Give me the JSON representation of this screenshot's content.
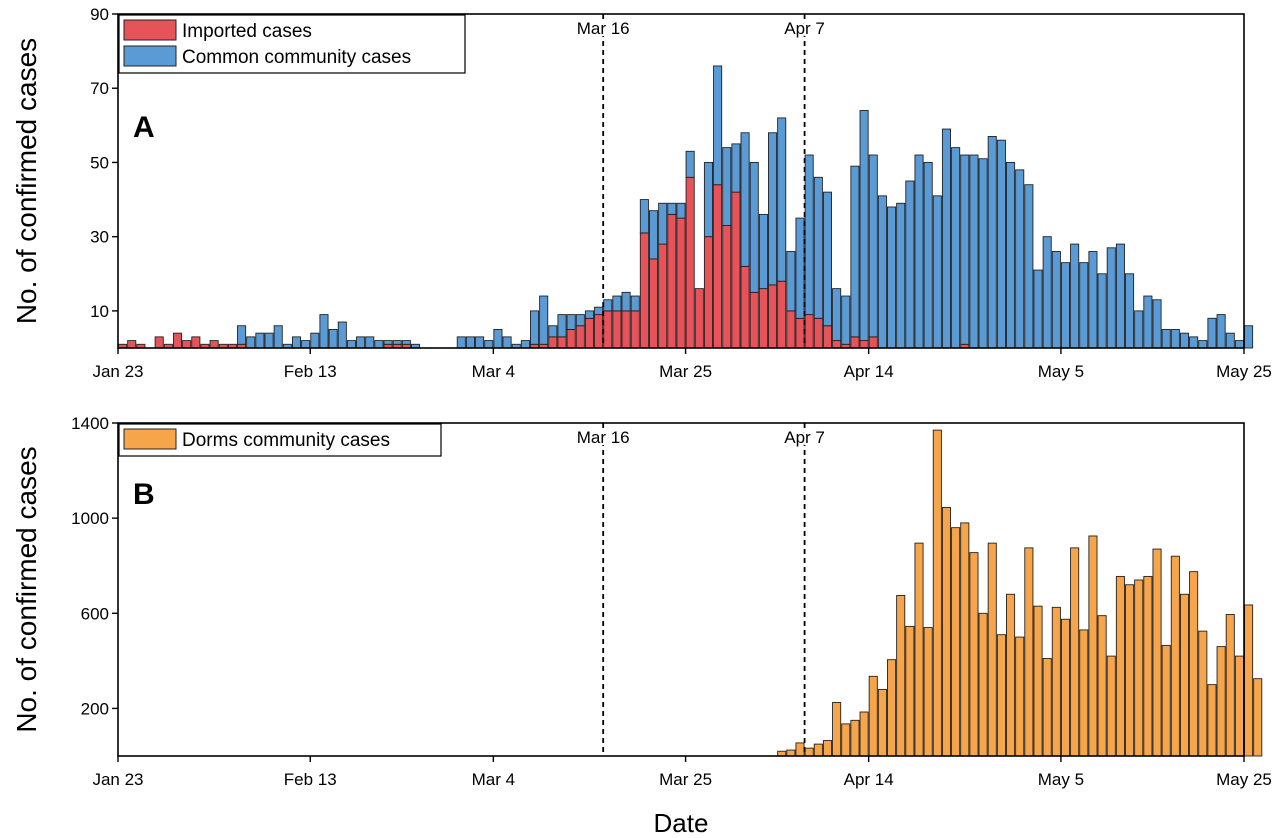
{
  "chart_data": [
    {
      "type": "bar",
      "panel_label": "A",
      "stacked": true,
      "ylabel": "No. of confirmed cases",
      "xlabel": "",
      "ylim": [
        0,
        90
      ],
      "yticks": [
        10,
        30,
        50,
        70,
        90
      ],
      "xticks": [
        "Jan 23",
        "Feb 13",
        "Mar 4",
        "Mar 25",
        "Apr 14",
        "May 5",
        "May 25"
      ],
      "xtick_days": [
        0,
        21,
        41,
        62,
        82,
        103,
        123
      ],
      "x_start": "Jan 23",
      "x_end": "May 25",
      "vlines": [
        {
          "day": 53,
          "label": "Mar 16"
        },
        {
          "day": 75,
          "label": "Apr 7"
        }
      ],
      "legend_position": "top-left",
      "series": [
        {
          "name": "Imported cases",
          "color": "#e8535a",
          "values": [
            1,
            2,
            1,
            0,
            3,
            1,
            4,
            2,
            3,
            1,
            2,
            1,
            1,
            1,
            0,
            0,
            0,
            0,
            0,
            0,
            0,
            0,
            0,
            0,
            0,
            0,
            0,
            0,
            0,
            1,
            1,
            1,
            0,
            0,
            0,
            0,
            0,
            0,
            0,
            0,
            0,
            0,
            0,
            0,
            0,
            1,
            1,
            3,
            3,
            5,
            6,
            8,
            9,
            10,
            10,
            10,
            10,
            31,
            24,
            28,
            36,
            35,
            46,
            16,
            30,
            44,
            33,
            42,
            22,
            15,
            16,
            17,
            18,
            10,
            8,
            9,
            8,
            6,
            2,
            1,
            3,
            2,
            3,
            0,
            0,
            0,
            0,
            0,
            0,
            0,
            0,
            0,
            1,
            0,
            0,
            0,
            0,
            0,
            0,
            0,
            0,
            0,
            0,
            0,
            0,
            0,
            0,
            0,
            0,
            0,
            0,
            0,
            0,
            0,
            0,
            0,
            0,
            0,
            0,
            0,
            0,
            0,
            0,
            0
          ]
        },
        {
          "name": "Common community cases",
          "color": "#5b9bd5",
          "values": [
            0,
            0,
            0,
            0,
            0,
            0,
            0,
            0,
            0,
            0,
            0,
            0,
            0,
            5,
            3,
            4,
            4,
            6,
            1,
            3,
            2,
            4,
            9,
            5,
            7,
            2,
            3,
            3,
            2,
            1,
            1,
            1,
            1,
            0,
            0,
            0,
            0,
            3,
            3,
            3,
            2,
            5,
            3,
            1,
            2,
            9,
            13,
            3,
            6,
            4,
            3,
            2,
            2,
            3,
            4,
            5,
            4,
            9,
            13,
            11,
            3,
            4,
            7,
            0,
            20,
            32,
            21,
            13,
            36,
            35,
            20,
            41,
            44,
            16,
            27,
            43,
            38,
            36,
            14,
            13,
            46,
            62,
            49,
            41,
            38,
            39,
            45,
            52,
            50,
            41,
            59,
            54,
            51,
            52,
            51,
            57,
            56,
            50,
            48,
            44,
            21,
            30,
            26,
            23,
            28,
            23,
            26,
            20,
            27,
            28,
            20,
            10,
            14,
            13,
            5,
            5,
            4,
            3,
            2,
            8,
            9,
            4,
            2,
            6,
            1
          ]
        }
      ]
    },
    {
      "type": "bar",
      "panel_label": "B",
      "ylabel": "No. of confirmed cases",
      "xlabel": "Date",
      "ylim": [
        0,
        1400
      ],
      "yticks": [
        200,
        600,
        1000,
        1400
      ],
      "xticks": [
        "Jan 23",
        "Feb 13",
        "Mar 4",
        "Mar 25",
        "Apr 14",
        "May 5",
        "May 25"
      ],
      "xtick_days": [
        0,
        21,
        41,
        62,
        82,
        103,
        123
      ],
      "x_start": "Jan 23",
      "x_end": "May 25",
      "vlines": [
        {
          "day": 53,
          "label": "Mar 16"
        },
        {
          "day": 75,
          "label": "Apr 7"
        }
      ],
      "legend_position": "top-left",
      "series": [
        {
          "name": "Dorms community cases",
          "color": "#f7a54a",
          "values": [
            0,
            0,
            0,
            0,
            0,
            0,
            0,
            0,
            0,
            0,
            0,
            0,
            0,
            0,
            0,
            0,
            0,
            0,
            0,
            0,
            0,
            0,
            0,
            0,
            0,
            0,
            0,
            0,
            0,
            0,
            0,
            0,
            0,
            0,
            0,
            0,
            0,
            0,
            0,
            0,
            0,
            0,
            0,
            0,
            0,
            0,
            0,
            0,
            0,
            0,
            0,
            0,
            0,
            0,
            0,
            0,
            0,
            0,
            0,
            0,
            0,
            0,
            0,
            0,
            0,
            0,
            0,
            0,
            0,
            0,
            0,
            0,
            20,
            25,
            55,
            33,
            50,
            65,
            225,
            135,
            150,
            185,
            335,
            280,
            405,
            675,
            545,
            895,
            540,
            1370,
            1045,
            960,
            980,
            855,
            600,
            895,
            510,
            680,
            500,
            875,
            630,
            410,
            625,
            575,
            875,
            530,
            925,
            590,
            420,
            755,
            720,
            740,
            755,
            870,
            465,
            840,
            680,
            775,
            525,
            300,
            460,
            595,
            420,
            635,
            325
          ]
        }
      ]
    }
  ]
}
